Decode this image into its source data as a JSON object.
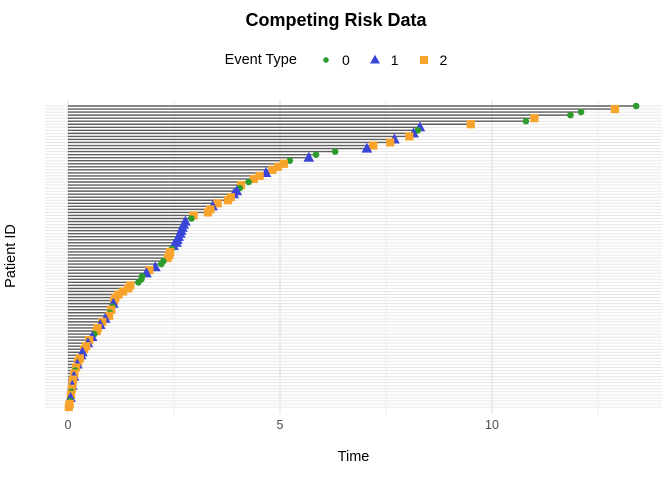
{
  "title": "Competing Risk Data",
  "legend": {
    "label": "Event Type",
    "items": [
      {
        "label": "0",
        "marker": "circle",
        "color": "#2D9C2D"
      },
      {
        "label": "1",
        "marker": "triangle",
        "color": "#3A45D8"
      },
      {
        "label": "2",
        "marker": "square",
        "color": "#F8A32C"
      }
    ]
  },
  "axes": {
    "x": {
      "label": "Time",
      "ticks": [
        0,
        5,
        10
      ],
      "minor_ticks": [
        2.5,
        7.5,
        12.5
      ],
      "range": [
        -0.55,
        14.0
      ]
    },
    "y": {
      "label": "Patient ID",
      "tick_labels_shown": false,
      "n_rows": 100
    }
  },
  "colors": {
    "background": "#ffffff",
    "segment": "#5e5e5e",
    "row_gridline": "#e7e7e7",
    "major_gridline": "#dedede",
    "minor_gridline": "#ededed",
    "event0": "#2D9C2D",
    "event1": "#3A45D8",
    "event2": "#F8A32C"
  },
  "chart_data": {
    "type": "scatter",
    "subtype": "competing-risk-swimmer-plot",
    "description": "One horizontal segment per patient from time 0 to event time, sorted by time (longest at top). Marker at segment end encodes event type.",
    "title": "Competing Risk Data",
    "xlabel": "Time",
    "ylabel": "Patient ID",
    "xlim": [
      -0.55,
      14.0
    ],
    "grid": true,
    "legend_position": "top-center",
    "columns": [
      "time",
      "event_type"
    ],
    "event_type_labels": {
      "0": "0 (green circle)",
      "1": "1 (blue triangle)",
      "2": "2 (orange square)"
    },
    "points": [
      [
        13.4,
        0
      ],
      [
        12.9,
        2
      ],
      [
        12.1,
        0
      ],
      [
        11.85,
        0
      ],
      [
        11.0,
        2
      ],
      [
        10.8,
        0
      ],
      [
        9.5,
        2
      ],
      [
        8.3,
        1
      ],
      [
        8.25,
        0
      ],
      [
        8.15,
        1
      ],
      [
        8.05,
        2
      ],
      [
        7.7,
        1
      ],
      [
        7.6,
        2
      ],
      [
        7.2,
        2
      ],
      [
        7.05,
        1
      ],
      [
        6.3,
        0
      ],
      [
        5.85,
        0
      ],
      [
        5.68,
        1
      ],
      [
        5.23,
        0
      ],
      [
        5.09,
        2
      ],
      [
        4.95,
        2
      ],
      [
        4.82,
        2
      ],
      [
        4.67,
        1
      ],
      [
        4.52,
        2
      ],
      [
        4.38,
        2
      ],
      [
        4.26,
        0
      ],
      [
        4.08,
        2
      ],
      [
        4.05,
        0
      ],
      [
        3.98,
        1
      ],
      [
        3.91,
        1
      ],
      [
        3.84,
        2
      ],
      [
        3.77,
        2
      ],
      [
        3.53,
        2
      ],
      [
        3.41,
        1
      ],
      [
        3.36,
        2
      ],
      [
        3.3,
        2
      ],
      [
        2.96,
        2
      ],
      [
        2.91,
        0
      ],
      [
        2.77,
        1
      ],
      [
        2.73,
        1
      ],
      [
        2.7,
        1
      ],
      [
        2.67,
        1
      ],
      [
        2.65,
        1
      ],
      [
        2.61,
        1
      ],
      [
        2.58,
        1
      ],
      [
        2.56,
        1
      ],
      [
        2.49,
        1
      ],
      [
        2.45,
        0
      ],
      [
        2.41,
        2
      ],
      [
        2.39,
        2
      ],
      [
        2.35,
        2
      ],
      [
        2.25,
        0
      ],
      [
        2.2,
        0
      ],
      [
        2.06,
        1
      ],
      [
        1.92,
        2
      ],
      [
        1.85,
        1
      ],
      [
        1.75,
        0
      ],
      [
        1.73,
        0
      ],
      [
        1.66,
        0
      ],
      [
        1.47,
        2
      ],
      [
        1.42,
        2
      ],
      [
        1.3,
        2
      ],
      [
        1.19,
        2
      ],
      [
        1.12,
        2
      ],
      [
        1.09,
        2
      ],
      [
        1.07,
        1
      ],
      [
        1.05,
        0
      ],
      [
        1.02,
        2
      ],
      [
        0.99,
        0
      ],
      [
        0.97,
        2
      ],
      [
        0.88,
        1
      ],
      [
        0.81,
        2
      ],
      [
        0.76,
        1
      ],
      [
        0.7,
        2
      ],
      [
        0.68,
        2
      ],
      [
        0.62,
        0
      ],
      [
        0.57,
        1
      ],
      [
        0.5,
        2
      ],
      [
        0.47,
        1
      ],
      [
        0.43,
        2
      ],
      [
        0.38,
        2
      ],
      [
        0.34,
        1
      ],
      [
        0.31,
        1
      ],
      [
        0.28,
        2
      ],
      [
        0.24,
        2
      ],
      [
        0.22,
        1
      ],
      [
        0.19,
        2
      ],
      [
        0.17,
        0
      ],
      [
        0.15,
        2
      ],
      [
        0.14,
        1
      ],
      [
        0.12,
        2
      ],
      [
        0.11,
        2
      ],
      [
        0.1,
        1
      ],
      [
        0.09,
        2
      ],
      [
        0.08,
        0
      ],
      [
        0.07,
        2
      ],
      [
        0.06,
        1
      ],
      [
        0.05,
        0
      ],
      [
        0.04,
        2
      ],
      [
        0.02,
        2
      ]
    ]
  }
}
